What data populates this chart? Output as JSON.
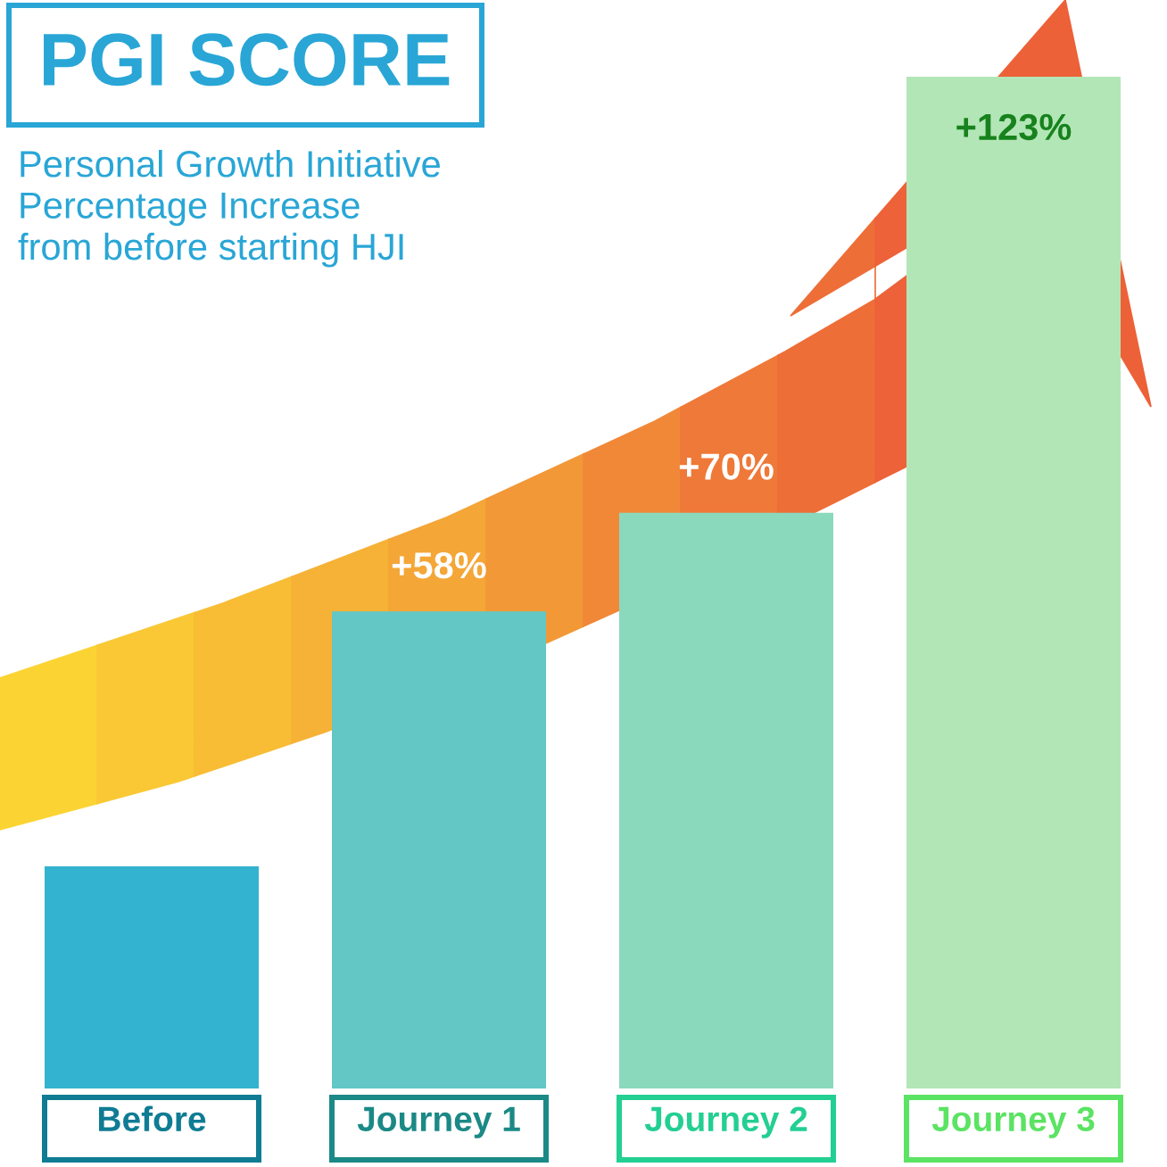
{
  "chart_data": {
    "type": "bar",
    "title": "PGI SCORE",
    "subtitle": "Personal Growth Initiative\nPercentage Increase\nfrom before starting HJI",
    "categories": [
      "Before",
      "Journey 1",
      "Journey 2",
      "Journey 3"
    ],
    "values": [
      27,
      58,
      70,
      123
    ],
    "colors": [
      "#33b3cf",
      "#62c7c5",
      "#8ad9bd",
      "#b3e6b6"
    ],
    "tick_labels": "x",
    "value_labels": [
      null,
      "+58%",
      "+70%",
      "+123%"
    ]
  }
}
